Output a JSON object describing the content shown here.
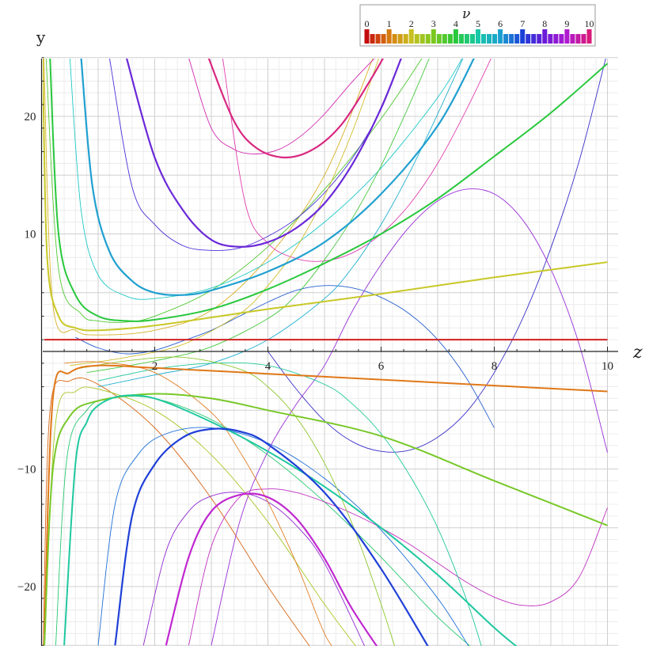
{
  "chart_data": {
    "type": "line",
    "title": "",
    "xlabel": "z",
    "ylabel": "y",
    "xlim": [
      0,
      10
    ],
    "ylim": [
      -25,
      25
    ],
    "grid": true,
    "x_ticks": [
      2,
      4,
      6,
      8,
      10
    ],
    "y_ticks": [
      -20,
      -10,
      10,
      20
    ],
    "legend": {
      "title": "ν",
      "placement": "top-right",
      "labels": [
        "0",
        "1",
        "2",
        "3",
        "4",
        "5",
        "6",
        "7",
        "8",
        "9",
        "10"
      ],
      "color_scale": [
        "#c40c0c",
        "#d67a10",
        "#c8c020",
        "#7ac820",
        "#28c83c",
        "#18c8a8",
        "#1aa0d0",
        "#1a3fd8",
        "#6a1ad8",
        "#b01ad0",
        "#d81a7a"
      ]
    },
    "series": [
      {
        "nu": 0,
        "color": "#d02020",
        "width": 2.0,
        "values": {
          "x": [
            0.05,
            10
          ],
          "y": [
            1.0,
            1.0
          ]
        }
      },
      {
        "nu": 1,
        "color": "#e07818",
        "width": 2.0,
        "values": {
          "x": [
            0.05,
            0.2,
            0.5,
            1,
            2,
            4,
            6,
            8,
            10
          ],
          "y": [
            -24,
            -4.0,
            -1.8,
            -1.2,
            -1.4,
            -1.9,
            -2.4,
            -2.9,
            -3.4
          ]
        }
      },
      {
        "nu": 2,
        "color": "#c8c828",
        "width": 2.0,
        "values": {
          "x": [
            0.02,
            0.1,
            0.3,
            0.6,
            1,
            2,
            4,
            6,
            8,
            10
          ],
          "y": [
            25,
            8,
            3.0,
            2.0,
            1.8,
            2.2,
            3.6,
            4.9,
            6.3,
            7.6
          ]
        }
      },
      {
        "nu": 3,
        "color": "#78c828",
        "width": 2.0,
        "values": {
          "x": [
            0.05,
            0.2,
            0.5,
            1,
            2,
            3,
            4,
            6,
            8,
            10
          ],
          "y": [
            -25,
            -10,
            -5.5,
            -4.2,
            -3.6,
            -4.0,
            -5.0,
            -7.2,
            -11.0,
            -14.8
          ]
        }
      },
      {
        "nu": 4,
        "color": "#28c83c",
        "width": 2.0,
        "values": {
          "x": [
            0.15,
            0.3,
            0.6,
            1,
            1.5,
            2,
            3,
            4,
            5,
            6,
            7,
            8,
            9,
            10
          ],
          "y": [
            25,
            10,
            4.8,
            3.0,
            2.6,
            2.7,
            3.6,
            5.3,
            7.5,
            10.0,
            13.0,
            16.6,
            20.3,
            24.5
          ]
        }
      },
      {
        "nu": 5,
        "color": "#20c8a0",
        "width": 2.0,
        "values": {
          "x": [
            0.4,
            0.6,
            0.8,
            1,
            1.4,
            2,
            3,
            4,
            5,
            6,
            7,
            8,
            8.5
          ],
          "y": [
            -25,
            -9.5,
            -6,
            -4.6,
            -3.8,
            -4.0,
            -6.0,
            -8.5,
            -11.5,
            -15.0,
            -19.0,
            -23.5,
            -25.5
          ]
        }
      },
      {
        "nu": 6,
        "color": "#20a0d0",
        "width": 2.2,
        "values": {
          "x": [
            0.7,
            0.9,
            1.2,
            1.6,
            2,
            2.5,
            3,
            4,
            5,
            6,
            7,
            7.7
          ],
          "y": [
            25,
            14,
            8.5,
            6.0,
            5.0,
            4.8,
            5.2,
            6.8,
            9.3,
            13.4,
            19.2,
            25.5
          ]
        }
      },
      {
        "nu": 7,
        "color": "#2040d8",
        "width": 2.2,
        "values": {
          "x": [
            1.3,
            1.6,
            2,
            2.5,
            3,
            3.5,
            4,
            5,
            6,
            7
          ],
          "y": [
            -25,
            -14,
            -9.6,
            -7.3,
            -6.6,
            -6.8,
            -7.9,
            -12.0,
            -18.5,
            -26.5
          ]
        }
      },
      {
        "nu": 8,
        "color": "#6a28d8",
        "width": 2.2,
        "values": {
          "x": [
            1.5,
            2,
            2.5,
            3,
            3.5,
            4,
            4.5,
            5,
            5.5,
            6,
            6.4
          ],
          "y": [
            25,
            16.5,
            12,
            9.5,
            8.9,
            9.3,
            10.5,
            12.6,
            16.0,
            20.7,
            25.5
          ]
        }
      },
      {
        "nu": 9,
        "color": "#c028d0",
        "width": 2.2,
        "values": {
          "x": [
            2.2,
            2.6,
            3,
            3.5,
            4,
            4.5,
            5,
            5.5,
            6.2
          ],
          "y": [
            -25,
            -17.5,
            -13.6,
            -12.2,
            -12.4,
            -14.2,
            -17.6,
            -22.0,
            -27
          ]
        }
      },
      {
        "nu": 10,
        "color": "#d82880",
        "width": 2.2,
        "values": {
          "x": [
            2.95,
            3.4,
            3.8,
            4.3,
            4.8,
            5.3,
            5.8,
            6.1
          ],
          "y": [
            25,
            19.6,
            17.3,
            16.5,
            17.2,
            19.3,
            23.0,
            25.5
          ]
        }
      },
      {
        "nu": 0.5,
        "color": "#d86818",
        "width": 0.9,
        "values": {
          "x": [
            0.03,
            0.15,
            0.5,
            1,
            2,
            3,
            4,
            4.8
          ],
          "y": [
            -25,
            -5,
            -2.5,
            -2.8,
            -6.5,
            -12.5,
            -20.0,
            -25.5
          ]
        }
      },
      {
        "nu": 1.5,
        "color": "#d8b028",
        "width": 0.9,
        "values": {
          "x": [
            0.04,
            0.2,
            0.6,
            1,
            2,
            3,
            4,
            5,
            5.9
          ],
          "y": [
            25,
            4,
            1.8,
            1.4,
            1.8,
            3.5,
            8.0,
            15.0,
            25.5
          ]
        }
      },
      {
        "nu": 2.5,
        "color": "#a8c828",
        "width": 0.9,
        "values": {
          "x": [
            0.05,
            0.25,
            0.6,
            1,
            2,
            3,
            4,
            5,
            5.7
          ],
          "y": [
            -25,
            -6,
            -3.4,
            -3.2,
            -5.0,
            -8.8,
            -14.5,
            -21.5,
            -26
          ]
        }
      },
      {
        "nu": 3.5,
        "color": "#50c830",
        "width": 0.9,
        "values": {
          "x": [
            0.08,
            0.3,
            0.7,
            1,
            1.5,
            2,
            3,
            4,
            5,
            6,
            6.8
          ],
          "y": [
            25,
            7,
            3.2,
            2.6,
            2.5,
            3.0,
            5.2,
            8.9,
            13.8,
            19.8,
            25.5
          ]
        }
      },
      {
        "nu": 4.5,
        "color": "#28c870",
        "width": 0.9,
        "values": {
          "x": [
            0.25,
            0.45,
            0.8,
            1.2,
            2,
            3,
            4,
            5,
            6,
            7,
            7.8
          ],
          "y": [
            -25,
            -9,
            -5.0,
            -4.0,
            -4.0,
            -5.8,
            -8.8,
            -12.8,
            -17.5,
            -22.6,
            -26
          ]
        }
      },
      {
        "nu": 5.5,
        "color": "#20c8c8",
        "width": 0.9,
        "values": {
          "x": [
            0.5,
            0.7,
            1,
            1.5,
            2,
            3,
            4,
            5,
            6,
            7,
            7.5
          ],
          "y": [
            25,
            12,
            6.5,
            4.7,
            4.5,
            5.4,
            7.6,
            11.0,
            15.6,
            21.6,
            25.5
          ]
        }
      },
      {
        "nu": 6.5,
        "color": "#2070d8",
        "width": 0.9,
        "values": {
          "x": [
            1.0,
            1.3,
            1.7,
            2.2,
            3,
            4,
            5,
            6,
            7,
            7.6
          ],
          "y": [
            -25,
            -13,
            -8.8,
            -7.0,
            -6.5,
            -7.8,
            -10.8,
            -15.2,
            -21.0,
            -25.5
          ]
        }
      },
      {
        "nu": 7.5,
        "color": "#4a30d8",
        "width": 0.9,
        "values": {
          "x": [
            1.2,
            1.6,
            2,
            2.5,
            3,
            3.5,
            4,
            4.5,
            5,
            5.5,
            6,
            6.4
          ],
          "y": [
            25,
            14,
            10.8,
            9.0,
            8.6,
            8.8,
            9.8,
            11.3,
            13.5,
            16.5,
            20.6,
            25.5
          ]
        }
      },
      {
        "nu": 8.5,
        "color": "#9028d0",
        "width": 0.9,
        "values": {
          "x": [
            1.8,
            2.2,
            2.6,
            3,
            3.5,
            4,
            4.5,
            5,
            5.8
          ],
          "y": [
            -25,
            -17.0,
            -13.6,
            -12.3,
            -12.0,
            -12.8,
            -14.8,
            -18.0,
            -26
          ]
        }
      },
      {
        "nu": 9.5,
        "color": "#d028b0",
        "width": 0.9,
        "values": {
          "x": [
            2.6,
            3,
            3.4,
            3.8,
            4.2,
            4.6,
            5,
            5.5,
            6.0
          ],
          "y": [
            25,
            19.0,
            17.2,
            16.8,
            17.2,
            18.4,
            20.2,
            23.0,
            25.5
          ]
        }
      },
      {
        "nu": 7.8,
        "color": "#3a30c8",
        "width": 0.9,
        "values": {
          "x": [
            4.0,
            4.5,
            5,
            5.5,
            6,
            6.5,
            7,
            7.5,
            8,
            8.5,
            9,
            9.5,
            10
          ],
          "y": [
            0.0,
            -3.2,
            -5.9,
            -7.7,
            -8.5,
            -8.4,
            -7.3,
            -5.2,
            -1.8,
            2.8,
            8.8,
            16.2,
            25.5
          ]
        }
      },
      {
        "nu": 8.2,
        "color": "#9830d8",
        "width": 0.9,
        "values": {
          "x": [
            3.0,
            3.5,
            4,
            4.5,
            5,
            5.5,
            6,
            6.5,
            7,
            7.5,
            8,
            8.5,
            9,
            9.5,
            10
          ],
          "y": [
            -25,
            -14.5,
            -8.5,
            -4.5,
            -1.2,
            3.5,
            7.4,
            10.6,
            12.8,
            13.8,
            13.4,
            11.2,
            7.0,
            0.6,
            -8.6
          ]
        }
      },
      {
        "nu": 9.2,
        "color": "#c030c0",
        "width": 0.9,
        "values": {
          "x": [
            2.6,
            3,
            3.5,
            4,
            4.5,
            5,
            5.5,
            6,
            6.5,
            7,
            7.5,
            8,
            8.5,
            9,
            9.5,
            10
          ],
          "y": [
            -25,
            -16.6,
            -12.4,
            -11.7,
            -12.0,
            -12.8,
            -13.8,
            -15.0,
            -16.4,
            -18.0,
            -19.6,
            -20.9,
            -21.6,
            -21.3,
            -19.2,
            -13.3
          ]
        }
      },
      {
        "nu": 9.6,
        "color": "#e040b0",
        "width": 0.9,
        "values": {
          "x": [
            3.2,
            3.6,
            4,
            4.5,
            5,
            5.5,
            6,
            6.5,
            7,
            7.5,
            8
          ],
          "y": [
            25,
            12.6,
            9.2,
            7.9,
            7.7,
            8.4,
            10.0,
            12.5,
            16.0,
            20.5,
            25.5
          ]
        }
      },
      {
        "nu": 7.2,
        "color": "#2a60d0",
        "width": 0.9,
        "values": {
          "x": [
            0.6,
            1,
            1.5,
            2,
            2.5,
            3,
            3.5,
            4,
            4.5,
            5,
            5.5,
            6,
            6.5,
            7,
            7.5,
            8
          ],
          "y": [
            1.2,
            0.3,
            -0.2,
            0.1,
            0.9,
            1.8,
            3.0,
            4.2,
            5.2,
            5.6,
            5.4,
            4.6,
            3.2,
            1.0,
            -2.2,
            -6.5
          ]
        }
      },
      {
        "nu": 6.2,
        "color": "#20b0d0",
        "width": 0.9,
        "values": {
          "x": [
            1.0,
            2,
            3,
            4,
            5,
            5.5,
            6,
            6.5,
            7,
            7.5
          ],
          "y": [
            -3.0,
            -2.0,
            -1.0,
            1.0,
            4.5,
            7.2,
            10.8,
            15.2,
            20.2,
            25.5
          ]
        }
      },
      {
        "nu": 5.2,
        "color": "#20c898",
        "width": 0.9,
        "values": {
          "x": [
            1.0,
            2,
            3,
            4,
            5,
            5.5,
            6,
            6.5,
            7,
            7.5,
            7.8
          ],
          "y": [
            -2.5,
            -1.5,
            -1.0,
            -1.2,
            -2.8,
            -4.5,
            -7.0,
            -10.5,
            -15.0,
            -21.0,
            -25.5
          ]
        }
      },
      {
        "nu": 4.2,
        "color": "#48c840",
        "width": 0.9,
        "values": {
          "x": [
            0.8,
            2,
            3,
            4,
            4.5,
            5,
            5.5,
            6,
            6.5,
            6.9
          ],
          "y": [
            -1.8,
            -0.8,
            0.4,
            2.8,
            4.8,
            7.8,
            11.4,
            15.8,
            21.0,
            25.5
          ]
        }
      },
      {
        "nu": 3.2,
        "color": "#90c830",
        "width": 0.9,
        "values": {
          "x": [
            0.6,
            1.5,
            2.5,
            3.5,
            4,
            4.5,
            5,
            5.5,
            6,
            6.3
          ],
          "y": [
            -1.5,
            -0.8,
            -0.5,
            -1.5,
            -3.0,
            -5.6,
            -9.5,
            -14.8,
            -21.5,
            -26
          ]
        }
      },
      {
        "nu": 2.2,
        "color": "#d0c030",
        "width": 0.9,
        "values": {
          "x": [
            0.5,
            1.5,
            2.5,
            3.5,
            4,
            4.5,
            5,
            5.5,
            6
          ],
          "y": [
            -1.2,
            -0.5,
            0.6,
            3.2,
            5.6,
            8.8,
            13.2,
            18.8,
            25.5
          ]
        }
      },
      {
        "nu": 1.2,
        "color": "#e08028",
        "width": 0.9,
        "values": {
          "x": [
            0.4,
            1,
            2,
            3,
            3.5,
            4,
            4.5,
            5,
            5.3
          ],
          "y": [
            -1.0,
            -0.9,
            -1.8,
            -5.2,
            -8.5,
            -12.8,
            -18.0,
            -24.0,
            -26
          ]
        }
      }
    ]
  }
}
